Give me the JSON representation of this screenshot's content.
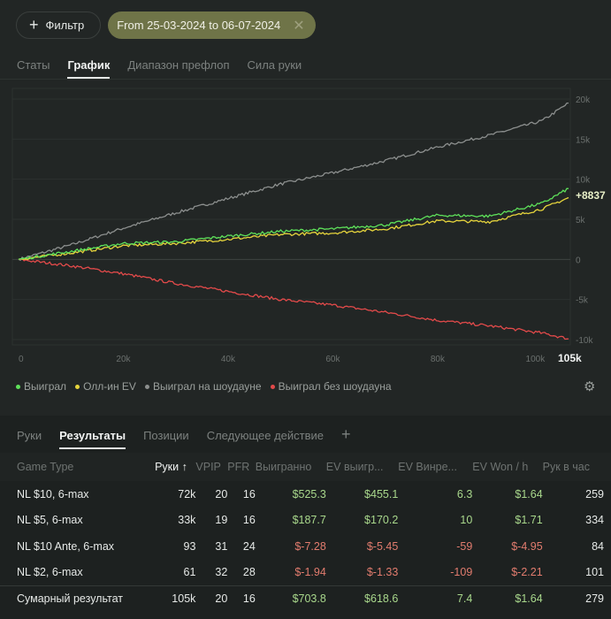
{
  "toolbar": {
    "filter_label": "Фильтр",
    "date_chip": "From 25-03-2024 to 06-07-2024"
  },
  "tabs": [
    "Статы",
    "График",
    "Диапазон префлоп",
    "Сила руки"
  ],
  "legend": [
    "Выиграл",
    "Олл-ин EV",
    "Выиграл на шоудауне",
    "Выиграл без шоудауна"
  ],
  "colors": {
    "won": "#5ee15a",
    "allin_ev": "#e6d43c",
    "showdown": "#8c8f8e",
    "non_showdown": "#e24a4a"
  },
  "chart_data": {
    "type": "line",
    "xlabel": "Руки",
    "ylabel": "",
    "xlim": [
      0,
      105000
    ],
    "ylim": [
      -10000,
      20000
    ],
    "x_ticks": [
      "0",
      "20k",
      "40k",
      "60k",
      "80k",
      "100k",
      "105k"
    ],
    "y_ticks": [
      "20k",
      "15k",
      "10k",
      "5k",
      "0",
      "-5k",
      "-10k"
    ],
    "end_label": "+8837",
    "x": [
      0,
      10000,
      20000,
      30000,
      40000,
      50000,
      60000,
      70000,
      80000,
      90000,
      100000,
      105000
    ],
    "series": [
      {
        "name": "Выиграл",
        "color": "#5ee15a",
        "values": [
          0,
          1000,
          2000,
          2200,
          2900,
          3500,
          3800,
          4300,
          5500,
          5400,
          7000,
          8837
        ]
      },
      {
        "name": "Олл-ин EV",
        "color": "#e6d43c",
        "values": [
          0,
          800,
          1700,
          2000,
          2500,
          3100,
          3300,
          3800,
          4800,
          4700,
          6300,
          7700
        ]
      },
      {
        "name": "Выиграл на шоудауне",
        "color": "#8c8f8e",
        "values": [
          0,
          1800,
          3900,
          5800,
          7600,
          9400,
          10800,
          12300,
          14000,
          15500,
          17300,
          19500
        ]
      },
      {
        "name": "Выиграл без шоудауна",
        "color": "#e24a4a",
        "values": [
          0,
          -800,
          -1800,
          -3000,
          -4000,
          -5000,
          -5700,
          -6600,
          -7600,
          -8300,
          -9200,
          -9900
        ]
      }
    ]
  },
  "lower_tabs": [
    "Руки",
    "Результаты",
    "Позиции",
    "Следующее действие"
  ],
  "table": {
    "headers": [
      "Game Type",
      "Руки ↑",
      "VPIP",
      "PFR",
      "Выигранно",
      "EV выигр...",
      "EV Винре...",
      "EV Won / h",
      "Рук в час"
    ],
    "rows": [
      [
        "NL $10, 6-max",
        "72k",
        "20",
        "16",
        "$525.3",
        "$455.1",
        "6.3",
        "$1.64",
        "259"
      ],
      [
        "NL $5, 6-max",
        "33k",
        "19",
        "16",
        "$187.7",
        "$170.2",
        "10",
        "$1.71",
        "334"
      ],
      [
        "NL $10 Ante, 6-max",
        "93",
        "31",
        "24",
        "$-7.28",
        "$-5.45",
        "-59",
        "$-4.95",
        "84"
      ],
      [
        "NL $2, 6-max",
        "61",
        "32",
        "28",
        "$-1.94",
        "$-1.33",
        "-109",
        "$-2.21",
        "101"
      ]
    ],
    "total": [
      "Сумарный результат",
      "105k",
      "20",
      "16",
      "$703.8",
      "$618.6",
      "7.4",
      "$1.64",
      "279"
    ]
  }
}
